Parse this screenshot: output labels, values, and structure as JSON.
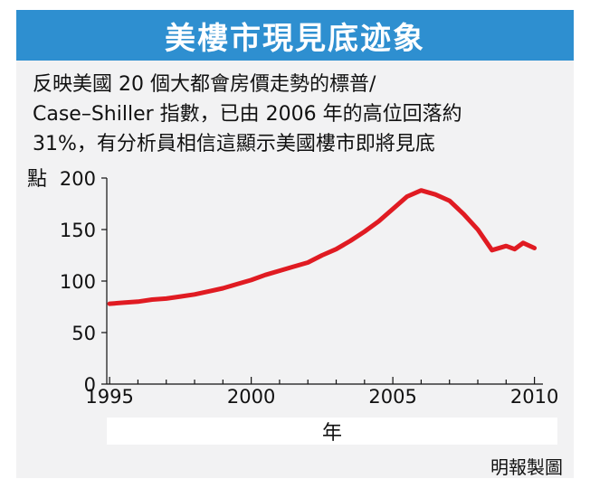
{
  "title": "美樓市現見底迹象",
  "caption": [
    "反映美國 20 個大都會房價走勢的標普/",
    "Case–Shiller 指數，已由 2006 年的高位回落約",
    "31%，有分析員相信這顯示美國樓市即將見底"
  ],
  "source": "明報製圖",
  "colors": {
    "title_bg": "#2e8fd0",
    "line": "#e01b22",
    "frame_bg": "#f2f2f3"
  },
  "chart_data": {
    "type": "line",
    "title": "",
    "ylabel": "點",
    "xlabel": "年",
    "ylim": [
      0,
      200
    ],
    "xlim": [
      1994.9,
      2010.3
    ],
    "yticks": [
      0,
      50,
      100,
      150,
      200
    ],
    "xticks": [
      1995,
      2000,
      2005,
      2010
    ],
    "grid": false,
    "series": [
      {
        "name": "",
        "x": [
          1995.0,
          1995.5,
          1996.0,
          1996.5,
          1997.0,
          1997.5,
          1998.0,
          1998.5,
          1999.0,
          1999.5,
          2000.0,
          2000.5,
          2001.0,
          2001.5,
          2002.0,
          2002.5,
          2003.0,
          2003.5,
          2004.0,
          2004.5,
          2005.0,
          2005.5,
          2006.0,
          2006.5,
          2007.0,
          2007.5,
          2008.0,
          2008.5,
          2009.0,
          2009.3,
          2009.6,
          2010.0
        ],
        "values": [
          78,
          79,
          80,
          82,
          83,
          85,
          87,
          90,
          93,
          97,
          101,
          106,
          110,
          114,
          118,
          125,
          131,
          139,
          148,
          158,
          170,
          182,
          188,
          184,
          178,
          165,
          150,
          130,
          134,
          131,
          137,
          132
        ]
      }
    ]
  }
}
